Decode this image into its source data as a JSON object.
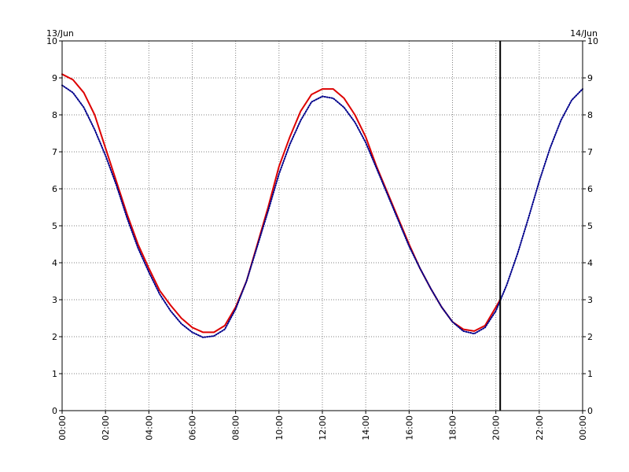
{
  "chart_data": {
    "type": "line",
    "title": "",
    "xlabel": "",
    "ylabel": "",
    "date_labels": {
      "left": "13/Jun",
      "right": "14/Jun"
    },
    "x_tick_labels": [
      "00:00",
      "02:00",
      "04:00",
      "06:00",
      "08:00",
      "10:00",
      "12:00",
      "14:00",
      "16:00",
      "18:00",
      "20:00",
      "22:00",
      "00:00"
    ],
    "y_tick_labels": [
      "0",
      "1",
      "2",
      "3",
      "4",
      "5",
      "6",
      "7",
      "8",
      "9",
      "10"
    ],
    "xlim": [
      0,
      24
    ],
    "ylim": [
      0,
      10
    ],
    "grid": true,
    "current_time_marker": 20.2,
    "series": [
      {
        "color": "#dd0000",
        "style": "solid",
        "x": [
          0,
          0.5,
          1,
          1.5,
          2,
          2.5,
          3,
          3.5,
          4,
          4.5,
          5,
          5.5,
          6,
          6.5,
          7,
          7.5,
          8,
          8.5,
          9,
          9.5,
          10,
          10.5,
          11,
          11.5,
          12,
          12.5,
          13,
          13.5,
          14,
          14.5,
          15,
          15.5,
          16,
          16.5,
          17,
          17.5,
          18,
          18.5,
          19,
          19.5,
          20,
          20.2
        ],
        "values": [
          9.1,
          8.95,
          8.6,
          8.0,
          7.1,
          6.2,
          5.3,
          4.5,
          3.85,
          3.25,
          2.85,
          2.5,
          2.25,
          2.12,
          2.12,
          2.3,
          2.8,
          3.5,
          4.5,
          5.5,
          6.6,
          7.4,
          8.1,
          8.55,
          8.7,
          8.7,
          8.45,
          8.0,
          7.4,
          6.6,
          5.9,
          5.2,
          4.5,
          3.85,
          3.3,
          2.8,
          2.4,
          2.2,
          2.15,
          2.3,
          2.8,
          3.0
        ]
      },
      {
        "color": "#00008b",
        "style": "dotted",
        "x": [
          0,
          0.5,
          1,
          1.5,
          2,
          2.5,
          3,
          3.5,
          4,
          4.5,
          5,
          5.5,
          6,
          6.5,
          7,
          7.5,
          8,
          8.5,
          9,
          9.5,
          10,
          10.5,
          11,
          11.5,
          12,
          12.5,
          13,
          13.5,
          14,
          14.5,
          15,
          15.5,
          16,
          16.5,
          17,
          17.5,
          18,
          18.5,
          19,
          19.5,
          20,
          20.5,
          21,
          21.5,
          22,
          22.5,
          23,
          23.5,
          24
        ],
        "values": [
          8.8,
          8.6,
          8.2,
          7.6,
          6.9,
          6.1,
          5.2,
          4.4,
          3.75,
          3.15,
          2.7,
          2.35,
          2.12,
          1.98,
          2.02,
          2.2,
          2.75,
          3.5,
          4.45,
          5.4,
          6.4,
          7.2,
          7.85,
          8.35,
          8.5,
          8.45,
          8.2,
          7.8,
          7.25,
          6.55,
          5.85,
          5.15,
          4.45,
          3.85,
          3.3,
          2.8,
          2.4,
          2.15,
          2.08,
          2.25,
          2.7,
          3.4,
          4.25,
          5.2,
          6.2,
          7.1,
          7.85,
          8.4,
          8.7
        ]
      }
    ]
  }
}
